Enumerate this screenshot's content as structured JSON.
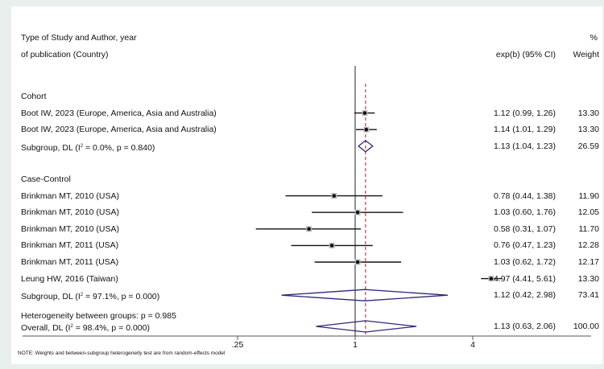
{
  "header": {
    "col1_line1": "Type of Study and Author, year",
    "col1_line2": "of publication (Country)",
    "pct": "%",
    "effect_col": "exp(b) (95% CI)",
    "weight_col": "Weight"
  },
  "note": "NOTE: Weights and between-subgroup heterogeneity test are from random-effects model",
  "heterogeneity_between": "Heterogeneity between groups: p = 0.985",
  "colors": {
    "background": "#e8efec",
    "panel": "#ffffff",
    "marker": "#111111",
    "diamond": "#2a2a78",
    "overall_line": "#a02020"
  },
  "chart_data": {
    "type": "forest",
    "x_scale": "log",
    "x_ticks": [
      0.25,
      1,
      4
    ],
    "x_tick_labels": [
      ".25",
      "1",
      "4"
    ],
    "null_line": 1,
    "groups": [
      {
        "name": "Cohort",
        "studies": [
          {
            "label": "Boot IW, 2023 (Europe, America, Asia and Australia)",
            "est": 1.12,
            "lo": 0.99,
            "hi": 1.26,
            "ci_text": "1.12 (0.99, 1.26)",
            "weight": "13.30"
          },
          {
            "label": "Boot IW, 2023 (Europe, America, Asia and Australia)",
            "est": 1.14,
            "lo": 1.01,
            "hi": 1.29,
            "ci_text": "1.14 (1.01, 1.29)",
            "weight": "13.30"
          }
        ],
        "subgroup": {
          "label_pre": "Subgroup, DL (I",
          "sup": "2",
          "label_post": " = 0.0%, p = 0.840)",
          "est": 1.13,
          "lo": 1.04,
          "hi": 1.23,
          "ci_text": "1.13 (1.04, 1.23)",
          "weight": "26.59"
        }
      },
      {
        "name": "Case-Control",
        "studies": [
          {
            "label": "Brinkman MT, 2010 (USA)",
            "est": 0.78,
            "lo": 0.44,
            "hi": 1.38,
            "ci_text": "0.78 (0.44, 1.38)",
            "weight": "11.90"
          },
          {
            "label": "Brinkman MT, 2010 (USA)",
            "est": 1.03,
            "lo": 0.6,
            "hi": 1.76,
            "ci_text": "1.03 (0.60, 1.76)",
            "weight": "12.05"
          },
          {
            "label": "Brinkman MT, 2010 (USA)",
            "est": 0.58,
            "lo": 0.31,
            "hi": 1.07,
            "ci_text": "0.58 (0.31, 1.07)",
            "weight": "11.70"
          },
          {
            "label": "Brinkman MT, 2011 (USA)",
            "est": 0.76,
            "lo": 0.47,
            "hi": 1.23,
            "ci_text": "0.76 (0.47, 1.23)",
            "weight": "12.28"
          },
          {
            "label": "Brinkman MT, 2011 (USA)",
            "est": 1.03,
            "lo": 0.62,
            "hi": 1.72,
            "ci_text": "1.03 (0.62, 1.72)",
            "weight": "12.17"
          },
          {
            "label": "Leung HW, 2016 (Taiwan)",
            "est": 4.97,
            "lo": 4.41,
            "hi": 5.61,
            "ci_text": "4.97 (4.41, 5.61)",
            "weight": "13.30"
          }
        ],
        "subgroup": {
          "label_pre": "Subgroup, DL (I",
          "sup": "2",
          "label_post": " = 97.1%, p = 0.000)",
          "est": 1.12,
          "lo": 0.42,
          "hi": 2.98,
          "ci_text": "1.12 (0.42, 2.98)",
          "weight": "73.41"
        }
      }
    ],
    "overall": {
      "label_pre": "Overall, DL (I",
      "sup": "2",
      "label_post": " = 98.4%, p = 0.000)",
      "est": 1.13,
      "lo": 0.63,
      "hi": 2.06,
      "ci_text": "1.13 (0.63, 2.06)",
      "weight": "100.00"
    }
  }
}
